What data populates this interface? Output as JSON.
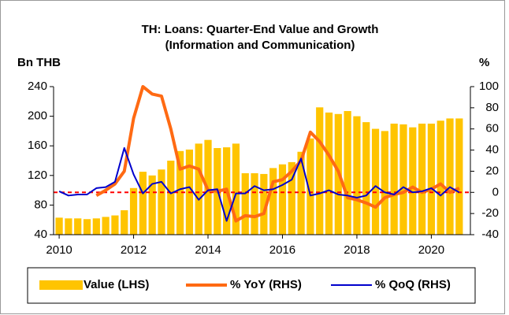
{
  "chart_data": {
    "type": "combo",
    "title": [
      "TH: Loans: Quarter-End Value and Growth",
      "(Information and Communication)"
    ],
    "y_label": "Bn THB",
    "y2_label": "%",
    "x": [
      2010,
      2010.25,
      2010.5,
      2010.75,
      2011,
      2011.25,
      2011.5,
      2011.75,
      2012,
      2012.25,
      2012.5,
      2012.75,
      2013,
      2013.25,
      2013.5,
      2013.75,
      2014,
      2014.25,
      2014.5,
      2014.75,
      2015,
      2015.25,
      2015.5,
      2015.75,
      2016,
      2016.25,
      2016.5,
      2016.75,
      2017,
      2017.25,
      2017.5,
      2017.75,
      2018,
      2018.25,
      2018.5,
      2018.75,
      2019,
      2019.25,
      2019.5,
      2019.75,
      2020,
      2020.25,
      2020.5,
      2020.75
    ],
    "xlim": [
      2009.85,
      2021.05
    ],
    "xticks": [
      2010,
      2012,
      2014,
      2016,
      2018,
      2020
    ],
    "ylim": [
      40,
      240
    ],
    "yticks": [
      40,
      80,
      120,
      160,
      200,
      240
    ],
    "y2lim": [
      -40,
      100
    ],
    "y2ticks": [
      -40,
      -20,
      0,
      20,
      40,
      60,
      80,
      100
    ],
    "reference_line": {
      "axis": "y2",
      "value": 0,
      "color": "#ff0000"
    },
    "series": [
      {
        "name": "Value (LHS)",
        "type": "bar",
        "axis": "y",
        "color": "#ffc400",
        "values": [
          63,
          62,
          62,
          61,
          62,
          64,
          66,
          73,
          103,
          125,
          120,
          128,
          140,
          153,
          155,
          163,
          168,
          157,
          158,
          163,
          123,
          123,
          122,
          130,
          135,
          138,
          152,
          170,
          212,
          205,
          203,
          207,
          200,
          192,
          183,
          180,
          190,
          189,
          185,
          190,
          190,
          194,
          197,
          197
        ]
      },
      {
        "name": "% YoY (RHS)",
        "type": "line",
        "axis": "y2",
        "color": "#ff6a13",
        "width": 4,
        "values": [
          null,
          null,
          null,
          null,
          -3,
          2,
          8,
          20,
          70,
          100,
          93,
          91,
          60,
          22,
          25,
          22,
          2,
          1,
          3,
          -27,
          -22,
          -23,
          -20,
          10,
          12,
          20,
          30,
          57,
          48,
          35,
          20,
          -5,
          -7,
          -10,
          -14,
          -5,
          -2,
          0,
          5,
          0,
          3,
          8,
          0,
          4
        ]
      },
      {
        "name": "% QoQ (RHS)",
        "type": "line",
        "axis": "y2",
        "color": "#0000cc",
        "width": 2,
        "values": [
          1,
          -3,
          -2,
          -2,
          4,
          5,
          10,
          42,
          17,
          -1,
          8,
          10,
          -1,
          3,
          5,
          -7,
          2,
          3,
          -27,
          -1,
          -1,
          6,
          2,
          3,
          7,
          12,
          32,
          -3,
          -1,
          2,
          -2,
          -3,
          -5,
          -3,
          6,
          0,
          -2,
          5,
          0,
          1,
          4,
          -3,
          5,
          0
        ]
      }
    ]
  }
}
